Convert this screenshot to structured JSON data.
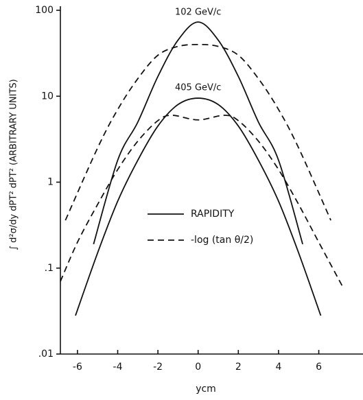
{
  "chart_data": {
    "type": "line",
    "y_label": "∫ d²σ/dy dPT² dPT²   (ARBITRARY UNITS)",
    "x_label": "ycm",
    "xlim": [
      -6.85,
      8.2
    ],
    "xticks": [
      -6,
      -4,
      -2,
      0,
      2,
      4,
      6
    ],
    "ylim": [
      0.01,
      100
    ],
    "log_y": true,
    "yticks": [
      100,
      10,
      1,
      {
        "value": 0.1,
        "label": ".1"
      },
      {
        "value": 0.01,
        "label": ".01"
      }
    ],
    "annotations": [
      {
        "text": "102 GeV/c",
        "x": 0,
        "y": 95
      },
      {
        "text": "405 GeV/c",
        "x": 0,
        "y": 12.5
      }
    ],
    "series": [
      {
        "name": "RAPIDITY",
        "color": "#111111",
        "dash": false,
        "x": [
          -5.2,
          -4,
          -3,
          -2,
          -1,
          0,
          1,
          2,
          3,
          4,
          5.2
        ],
        "values": [
          0.19,
          1.8,
          5,
          17,
          45,
          73,
          45,
          17,
          5,
          1.8,
          0.19
        ]
      },
      {
        "name": "-log (tan θ/2)",
        "color": "#111111",
        "dash": true,
        "x": [
          -6.6,
          -5,
          -4,
          -3,
          -2,
          -1,
          0,
          1,
          2,
          3,
          4,
          5,
          6.6
        ],
        "values": [
          0.36,
          2.5,
          7,
          16,
          30,
          38,
          40,
          38,
          30,
          16,
          7,
          2.5,
          0.36
        ]
      },
      {
        "color": "#111111",
        "dash": false,
        "x": [
          -6.1,
          -5,
          -4,
          -3,
          -2,
          -1,
          0,
          1,
          2,
          3,
          4,
          5,
          6.1
        ],
        "values": [
          0.028,
          0.15,
          0.6,
          1.8,
          4.5,
          8,
          9.5,
          8,
          4.5,
          1.8,
          0.6,
          0.15,
          0.028
        ]
      },
      {
        "color": "#111111",
        "dash": true,
        "x": [
          -6.85,
          -6,
          -5,
          -4,
          -3,
          -2,
          -1.3,
          0,
          1.3,
          2,
          3,
          4,
          5,
          6,
          7.2
        ],
        "values": [
          0.07,
          0.2,
          0.55,
          1.4,
          3,
          5.2,
          6,
          5.3,
          6,
          5.2,
          3,
          1.4,
          0.55,
          0.2,
          0.06
        ]
      }
    ]
  }
}
